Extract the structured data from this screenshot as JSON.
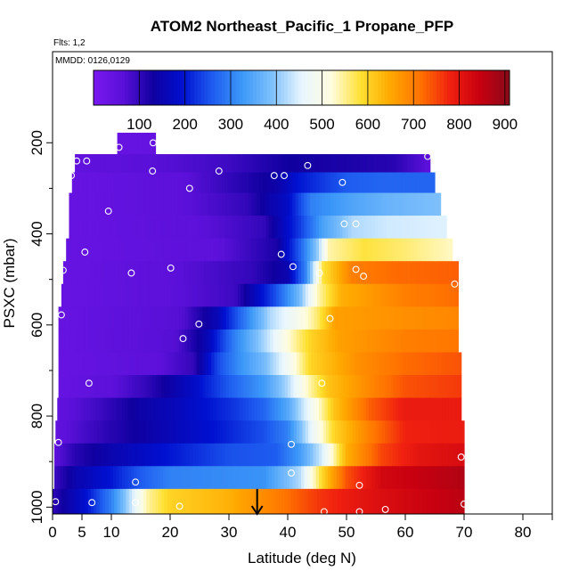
{
  "chart_data": {
    "type": "heatmap",
    "title": "ATOM2 Northeast_Pacific_1 Propane_PFP",
    "subtitle_flights": "Flts: 1,2",
    "subtitle_dates": "MMDD: 0126,0129",
    "xlabel": "Latitude (deg N)",
    "ylabel": "PSXC (mbar)",
    "xlim": [
      0,
      85
    ],
    "ylim": [
      1015,
      0
    ],
    "x_ticks": [
      0,
      5,
      10,
      20,
      30,
      40,
      50,
      60,
      70,
      80
    ],
    "x_tick_labels": [
      "0",
      "5",
      "10",
      "20",
      "30",
      "40",
      "50",
      "60",
      "70",
      "80"
    ],
    "y_ticks": [
      200,
      400,
      600,
      800,
      1000
    ],
    "y_tick_labels": [
      "200",
      "400",
      "600",
      "800",
      "1000"
    ],
    "colorbar": {
      "range": [
        0,
        910
      ],
      "ticks": [
        100,
        200,
        300,
        400,
        500,
        600,
        700,
        800,
        900
      ],
      "tick_labels": [
        "100",
        "200",
        "300",
        "400",
        "500",
        "600",
        "700",
        "800",
        "900"
      ],
      "colors": [
        "#7a18f0",
        "#5a10d8",
        "#1000a0",
        "#0010d0",
        "#1e5cf0",
        "#3c98f8",
        "#7ec0fc",
        "#e8f6ff",
        "#fffde0",
        "#ffe030",
        "#ffa800",
        "#ff7200",
        "#f02010",
        "#c80010",
        "#8a0a1a"
      ]
    },
    "heatmap_rows": [
      {
        "p_top": 178,
        "p_bot": 225,
        "x_start": 11,
        "x_end": 17.5,
        "anchors": [
          [
            11,
            40
          ],
          [
            17.5,
            45
          ]
        ]
      },
      {
        "p_top": 225,
        "p_bot": 265,
        "x_start": 3.8,
        "x_end": 64.2,
        "anchors": [
          [
            3.8,
            50
          ],
          [
            20,
            70
          ],
          [
            30,
            90
          ],
          [
            40,
            130
          ],
          [
            50,
            120
          ],
          [
            58,
            110
          ],
          [
            64.2,
            60
          ]
        ]
      },
      {
        "p_top": 265,
        "p_bot": 310,
        "x_start": 3.3,
        "x_end": 65,
        "anchors": [
          [
            3.3,
            40
          ],
          [
            22,
            60
          ],
          [
            30,
            100
          ],
          [
            38,
            140
          ],
          [
            42,
            200
          ],
          [
            50,
            260
          ],
          [
            56,
            270
          ],
          [
            65,
            270
          ]
        ]
      },
      {
        "p_top": 310,
        "p_bot": 360,
        "x_start": 2.8,
        "x_end": 66,
        "anchors": [
          [
            2.8,
            40
          ],
          [
            22,
            60
          ],
          [
            33,
            100
          ],
          [
            40,
            180
          ],
          [
            44,
            300
          ],
          [
            50,
            340
          ],
          [
            57,
            370
          ],
          [
            66,
            390
          ]
        ]
      },
      {
        "p_top": 360,
        "p_bot": 410,
        "x_start": 2.8,
        "x_end": 67,
        "anchors": [
          [
            2.8,
            40
          ],
          [
            25,
            60
          ],
          [
            36,
            100
          ],
          [
            42,
            230
          ],
          [
            46,
            340
          ],
          [
            51,
            420
          ],
          [
            57,
            440
          ],
          [
            67,
            450
          ]
        ]
      },
      {
        "p_top": 410,
        "p_bot": 460,
        "x_start": 2.3,
        "x_end": 68,
        "anchors": [
          [
            2.3,
            40
          ],
          [
            28,
            60
          ],
          [
            38,
            120
          ],
          [
            42,
            260
          ],
          [
            45,
            400
          ],
          [
            47,
            540
          ],
          [
            53,
            580
          ],
          [
            60,
            560
          ],
          [
            68,
            530
          ]
        ]
      },
      {
        "p_top": 460,
        "p_bot": 510,
        "x_start": 1.8,
        "x_end": 69,
        "anchors": [
          [
            1.8,
            40
          ],
          [
            20,
            60
          ],
          [
            34,
            100
          ],
          [
            40,
            150
          ],
          [
            43,
            300
          ],
          [
            45,
            490
          ],
          [
            46,
            580
          ],
          [
            51,
            700
          ],
          [
            58,
            720
          ],
          [
            69,
            730
          ]
        ]
      },
      {
        "p_top": 510,
        "p_bot": 560,
        "x_start": 1.5,
        "x_end": 69,
        "anchors": [
          [
            1.5,
            40
          ],
          [
            20,
            60
          ],
          [
            31,
            90
          ],
          [
            38,
            250
          ],
          [
            42,
            380
          ],
          [
            45,
            530
          ],
          [
            49,
            640
          ],
          [
            60,
            700
          ],
          [
            69,
            720
          ]
        ]
      },
      {
        "p_top": 560,
        "p_bot": 610,
        "x_start": 1,
        "x_end": 69,
        "anchors": [
          [
            1,
            40
          ],
          [
            22,
            70
          ],
          [
            28,
            160
          ],
          [
            33,
            300
          ],
          [
            37,
            420
          ],
          [
            41,
            480
          ],
          [
            45,
            560
          ],
          [
            48,
            660
          ],
          [
            60,
            680
          ],
          [
            69,
            690
          ]
        ]
      },
      {
        "p_top": 610,
        "p_bot": 660,
        "x_start": 1,
        "x_end": 69,
        "anchors": [
          [
            1,
            40
          ],
          [
            21,
            70
          ],
          [
            26,
            150
          ],
          [
            31,
            300
          ],
          [
            37,
            440
          ],
          [
            40,
            520
          ],
          [
            44,
            600
          ],
          [
            49,
            660
          ],
          [
            60,
            700
          ],
          [
            69,
            710
          ]
        ]
      },
      {
        "p_top": 660,
        "p_bot": 710,
        "x_start": 1,
        "x_end": 69.5,
        "anchors": [
          [
            1,
            40
          ],
          [
            18,
            60
          ],
          [
            24,
            100
          ],
          [
            28,
            240
          ],
          [
            32,
            320
          ],
          [
            36,
            380
          ],
          [
            40,
            480
          ],
          [
            44,
            600
          ],
          [
            52,
            680
          ],
          [
            60,
            720
          ],
          [
            69.5,
            740
          ]
        ]
      },
      {
        "p_top": 710,
        "p_bot": 760,
        "x_start": 1,
        "x_end": 69.5,
        "anchors": [
          [
            1,
            40
          ],
          [
            10,
            60
          ],
          [
            16,
            100
          ],
          [
            24,
            180
          ],
          [
            30,
            260
          ],
          [
            36,
            330
          ],
          [
            40,
            420
          ],
          [
            43,
            520
          ],
          [
            47,
            620
          ],
          [
            55,
            700
          ],
          [
            60,
            740
          ],
          [
            69.5,
            760
          ]
        ]
      },
      {
        "p_top": 760,
        "p_bot": 810,
        "x_start": 0.8,
        "x_end": 69.5,
        "anchors": [
          [
            0.8,
            50
          ],
          [
            8,
            90
          ],
          [
            15,
            140
          ],
          [
            22,
            170
          ],
          [
            30,
            220
          ],
          [
            36,
            270
          ],
          [
            40,
            350
          ],
          [
            44,
            480
          ],
          [
            48,
            620
          ],
          [
            54,
            730
          ],
          [
            60,
            790
          ],
          [
            69.5,
            790
          ]
        ]
      },
      {
        "p_top": 810,
        "p_bot": 860,
        "x_start": 0.5,
        "x_end": 70,
        "anchors": [
          [
            0.5,
            50
          ],
          [
            5,
            80
          ],
          [
            10,
            110
          ],
          [
            18,
            150
          ],
          [
            28,
            200
          ],
          [
            36,
            250
          ],
          [
            40,
            300
          ],
          [
            44,
            460
          ],
          [
            48,
            600
          ],
          [
            54,
            700
          ],
          [
            60,
            780
          ],
          [
            70,
            790
          ]
        ]
      },
      {
        "p_top": 860,
        "p_bot": 910,
        "x_start": 0.3,
        "x_end": 70,
        "anchors": [
          [
            0.3,
            60
          ],
          [
            4,
            110
          ],
          [
            10,
            150
          ],
          [
            20,
            200
          ],
          [
            30,
            250
          ],
          [
            38,
            260
          ],
          [
            42,
            330
          ],
          [
            46,
            450
          ],
          [
            50,
            640
          ],
          [
            56,
            750
          ],
          [
            62,
            800
          ],
          [
            70,
            820
          ]
        ]
      },
      {
        "p_top": 910,
        "p_bot": 960,
        "x_start": 0.3,
        "x_end": 70,
        "anchors": [
          [
            0.3,
            90
          ],
          [
            4,
            150
          ],
          [
            10,
            200
          ],
          [
            15,
            260
          ],
          [
            20,
            300
          ],
          [
            28,
            310
          ],
          [
            36,
            320
          ],
          [
            42,
            420
          ],
          [
            46,
            600
          ],
          [
            50,
            740
          ],
          [
            56,
            830
          ],
          [
            70,
            870
          ]
        ]
      },
      {
        "p_top": 960,
        "p_bot": 1015,
        "x_start": 0,
        "x_end": 70,
        "anchors": [
          [
            0,
            100
          ],
          [
            6,
            200
          ],
          [
            10,
            300
          ],
          [
            14,
            460
          ],
          [
            16,
            540
          ],
          [
            20,
            600
          ],
          [
            30,
            640
          ],
          [
            38,
            700
          ],
          [
            45,
            760
          ],
          [
            52,
            800
          ],
          [
            60,
            830
          ],
          [
            70,
            860
          ]
        ]
      }
    ],
    "points": [
      {
        "lat": 11.3,
        "p": 210
      },
      {
        "lat": 17.1,
        "p": 200
      },
      {
        "lat": 4.1,
        "p": 240
      },
      {
        "lat": 5.8,
        "p": 240
      },
      {
        "lat": 17,
        "p": 262
      },
      {
        "lat": 3.2,
        "p": 272
      },
      {
        "lat": 28.3,
        "p": 262
      },
      {
        "lat": 23.3,
        "p": 300
      },
      {
        "lat": 37.7,
        "p": 272
      },
      {
        "lat": 39.4,
        "p": 272
      },
      {
        "lat": 43.4,
        "p": 250
      },
      {
        "lat": 49.3,
        "p": 287
      },
      {
        "lat": 63.8,
        "p": 230
      },
      {
        "lat": 9.5,
        "p": 350
      },
      {
        "lat": 5.5,
        "p": 440
      },
      {
        "lat": 38.9,
        "p": 445
      },
      {
        "lat": 49.6,
        "p": 378
      },
      {
        "lat": 51.6,
        "p": 378
      },
      {
        "lat": 1.8,
        "p": 480
      },
      {
        "lat": 13.4,
        "p": 486
      },
      {
        "lat": 20.1,
        "p": 475
      },
      {
        "lat": 40.9,
        "p": 472
      },
      {
        "lat": 45.4,
        "p": 486
      },
      {
        "lat": 51.6,
        "p": 478
      },
      {
        "lat": 52.9,
        "p": 493
      },
      {
        "lat": 68.4,
        "p": 510
      },
      {
        "lat": 1.5,
        "p": 578
      },
      {
        "lat": 24.9,
        "p": 598
      },
      {
        "lat": 22.2,
        "p": 630
      },
      {
        "lat": 47.2,
        "p": 586
      },
      {
        "lat": 6.2,
        "p": 728
      },
      {
        "lat": 45.8,
        "p": 728
      },
      {
        "lat": 1,
        "p": 858
      },
      {
        "lat": 40.6,
        "p": 862
      },
      {
        "lat": 14.1,
        "p": 945
      },
      {
        "lat": 40.6,
        "p": 925
      },
      {
        "lat": 52.2,
        "p": 952
      },
      {
        "lat": 69.5,
        "p": 890
      },
      {
        "lat": 0.5,
        "p": 988
      },
      {
        "lat": 6.7,
        "p": 990
      },
      {
        "lat": 14.1,
        "p": 990
      },
      {
        "lat": 21.6,
        "p": 998
      },
      {
        "lat": 46.2,
        "p": 1010
      },
      {
        "lat": 52.2,
        "p": 1010
      },
      {
        "lat": 56.6,
        "p": 1005
      },
      {
        "lat": 70,
        "p": 993
      }
    ],
    "arrow": {
      "lat": 34.8,
      "p_from": 960,
      "p_to": 1015
    }
  }
}
